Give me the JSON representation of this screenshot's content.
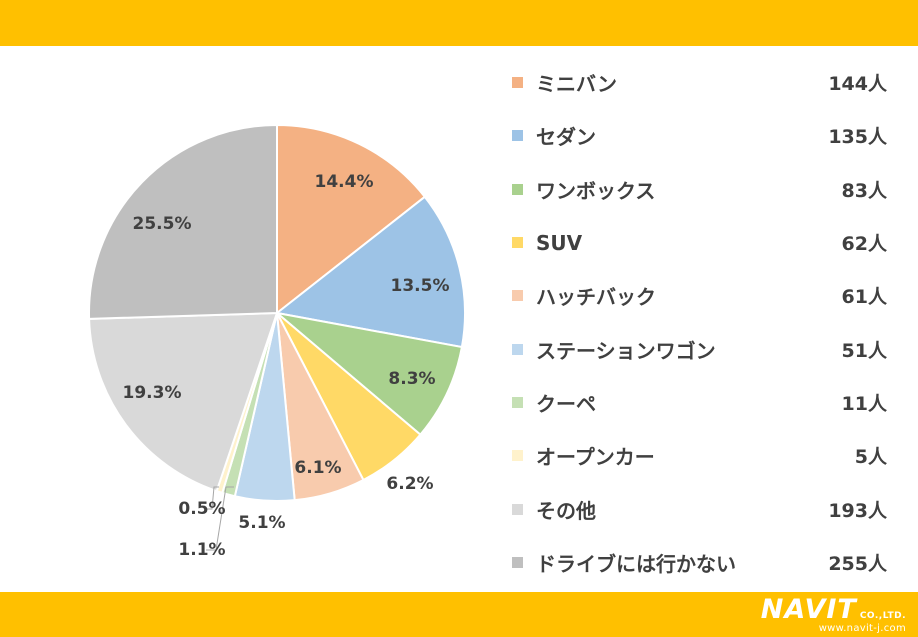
{
  "chart_data": {
    "type": "pie",
    "categories": [
      "ミニバン",
      "セダン",
      "ワンボックス",
      "SUV",
      "ハッチバック",
      "ステーションワゴン",
      "クーペ",
      "オープンカー",
      "その他",
      "ドライブには行かない"
    ],
    "values": [
      144,
      135,
      83,
      62,
      61,
      51,
      11,
      5,
      193,
      255
    ],
    "counts": [
      "144人",
      "135人",
      "83人",
      "62人",
      "61人",
      "51人",
      "11人",
      "5人",
      "193人",
      "255人"
    ],
    "percent_labels": [
      "14.4%",
      "13.5%",
      "8.3%",
      "6.2%",
      "6.1%",
      "5.1%",
      "1.1%",
      "0.5%",
      "19.3%",
      "25.5%"
    ],
    "colors": [
      "#F4B183",
      "#9DC3E6",
      "#A9D18E",
      "#FFD966",
      "#F8CBAD",
      "#BDD7EE",
      "#C5E0B4",
      "#FFF2CC",
      "#D9D9D9",
      "#BFBFBF"
    ],
    "legend_position": "right",
    "start_angle_deg": 0,
    "direction": "clockwise"
  },
  "brand": {
    "logo_text": "NAVIT",
    "logo_suffix": "CO.,LTD.",
    "url": "www.navit-j.com",
    "band_color": "#FFC000"
  }
}
